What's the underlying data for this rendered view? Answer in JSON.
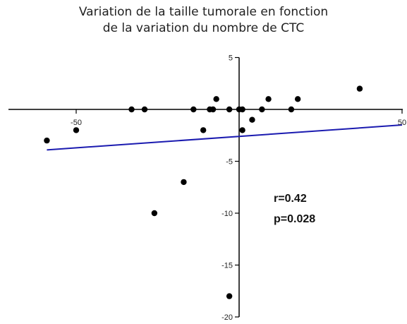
{
  "chart_data": {
    "type": "scatter",
    "title": [
      "Variation de la taille tumorale en fonction",
      "de la variation du nombre de CTC"
    ],
    "xlabel": "",
    "ylabel": "",
    "xlim": [
      -60,
      50
    ],
    "ylim": [
      -20,
      5
    ],
    "x_ticks": [
      -50,
      50
    ],
    "y_ticks": [
      5,
      -5,
      -10,
      -15,
      -20
    ],
    "points": [
      {
        "x": -59,
        "y": -3
      },
      {
        "x": -50,
        "y": -2
      },
      {
        "x": -33,
        "y": 0
      },
      {
        "x": -29,
        "y": 0
      },
      {
        "x": -26,
        "y": -10
      },
      {
        "x": -17,
        "y": -7
      },
      {
        "x": -14,
        "y": 0
      },
      {
        "x": -11,
        "y": -2
      },
      {
        "x": -9,
        "y": 0
      },
      {
        "x": -8,
        "y": 0
      },
      {
        "x": -7,
        "y": 1
      },
      {
        "x": -3,
        "y": -18
      },
      {
        "x": -3,
        "y": 0
      },
      {
        "x": 0,
        "y": 0
      },
      {
        "x": 1,
        "y": 0
      },
      {
        "x": 1,
        "y": -2
      },
      {
        "x": 4,
        "y": -1
      },
      {
        "x": 7,
        "y": 0
      },
      {
        "x": 9,
        "y": 1
      },
      {
        "x": 16,
        "y": 0
      },
      {
        "x": 18,
        "y": 1
      },
      {
        "x": 37,
        "y": 2
      }
    ],
    "regression_line": {
      "x": [
        -59,
        50
      ],
      "y": [
        -3.9,
        -1.5
      ],
      "color": "#1b1bb0"
    },
    "annotations": [
      "r=0.42",
      "p=0.028"
    ],
    "grid": false,
    "legend": "none",
    "point_color": "#000000"
  }
}
